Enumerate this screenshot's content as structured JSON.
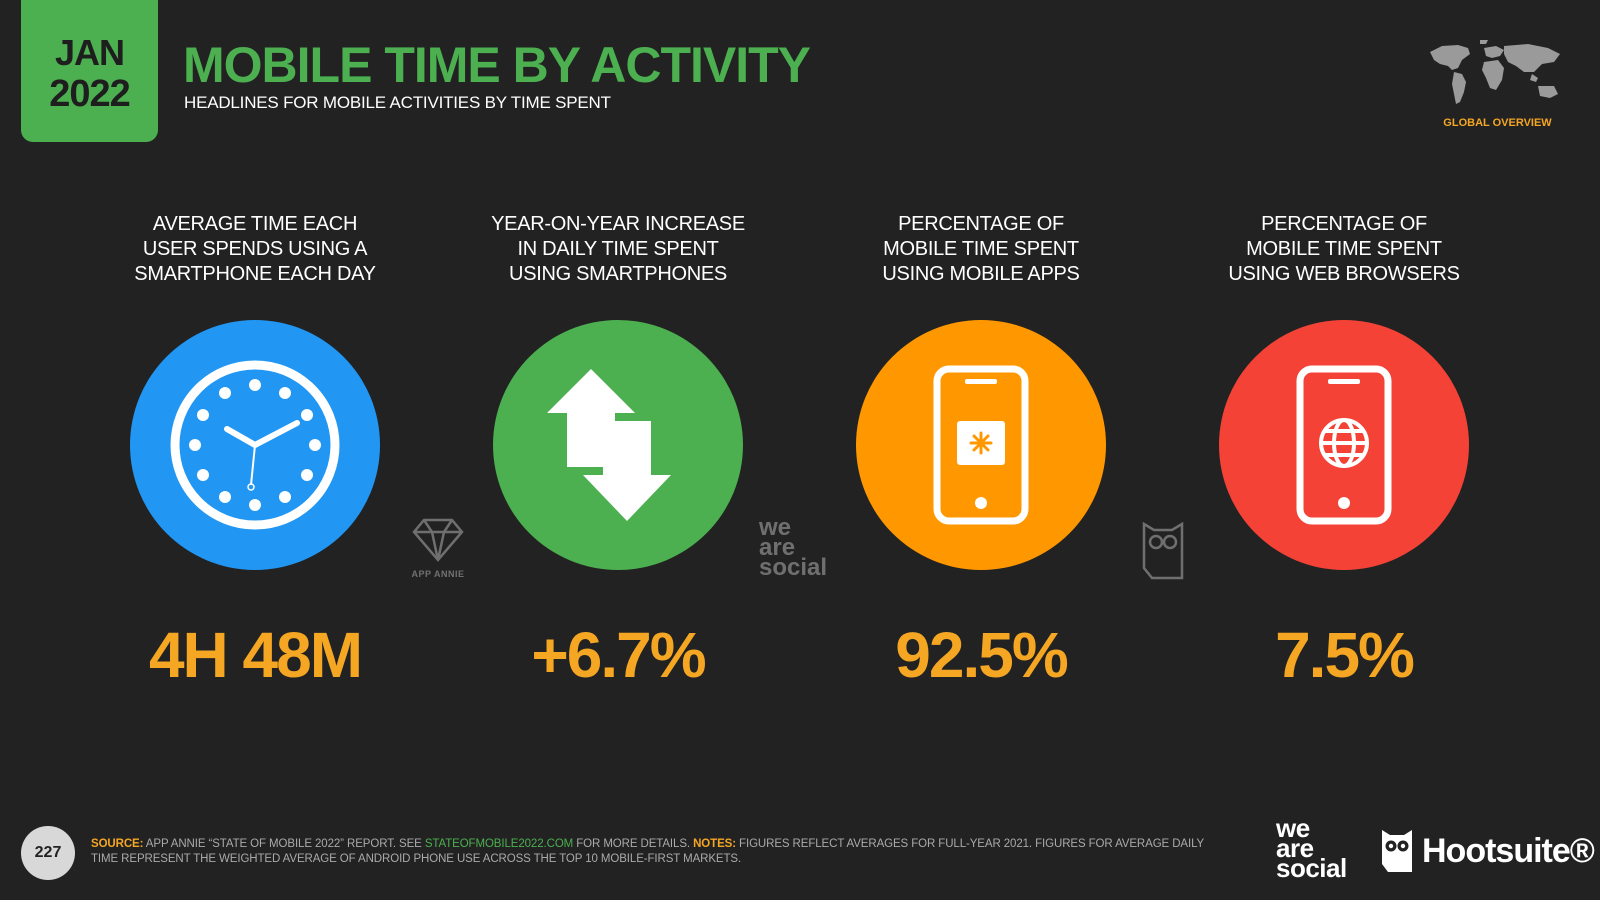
{
  "header": {
    "month": "JAN",
    "year": "2022",
    "title": "MOBILE TIME BY ACTIVITY",
    "subtitle": "HEADLINES FOR MOBILE ACTIVITIES BY TIME SPENT",
    "region_label": "GLOBAL OVERVIEW"
  },
  "stats": [
    {
      "label": [
        "AVERAGE TIME EACH",
        "USER SPENDS USING A",
        "SMARTPHONE EACH DAY"
      ],
      "value": "4H 48M",
      "icon": "clock-icon",
      "color": "#2196f3"
    },
    {
      "label": [
        "YEAR-ON-YEAR INCREASE",
        "IN DAILY TIME SPENT",
        "USING SMARTPHONES"
      ],
      "value": "+6.7%",
      "icon": "up-down-arrows-icon",
      "color": "#4caf50"
    },
    {
      "label": [
        "PERCENTAGE OF",
        "MOBILE TIME SPENT",
        "USING MOBILE APPS"
      ],
      "value": "92.5%",
      "icon": "smartphone-app-icon",
      "color": "#ff9800"
    },
    {
      "label": [
        "PERCENTAGE OF",
        "MOBILE TIME SPENT",
        "USING WEB BROWSERS"
      ],
      "value": "7.5%",
      "icon": "smartphone-globe-icon",
      "color": "#f44336"
    }
  ],
  "watermarks": {
    "app_annie": "APP ANNIE",
    "we_are_social": [
      "we",
      "are",
      "social"
    ]
  },
  "footer": {
    "page_number": "227",
    "source_key": "SOURCE:",
    "source_text": " APP ANNIE “STATE OF MOBILE 2022” REPORT. SEE ",
    "source_link": "STATEOFMOBILE2022.COM",
    "source_after": " FOR MORE DETAILS. ",
    "notes_key": "NOTES:",
    "notes_text": " FIGURES REFLECT AVERAGES FOR FULL-YEAR 2021. FIGURES FOR AVERAGE DAILY TIME REPRESENT THE WEIGHTED AVERAGE OF ANDROID PHONE USE ACROSS THE TOP 10 MOBILE-FIRST MARKETS."
  },
  "brands": {
    "we_are_social": [
      "we",
      "are",
      "social"
    ],
    "hootsuite": "Hootsuite®"
  },
  "colors": {
    "background": "#222222",
    "accent_green": "#4caf50",
    "value_orange": "#f5a623"
  }
}
